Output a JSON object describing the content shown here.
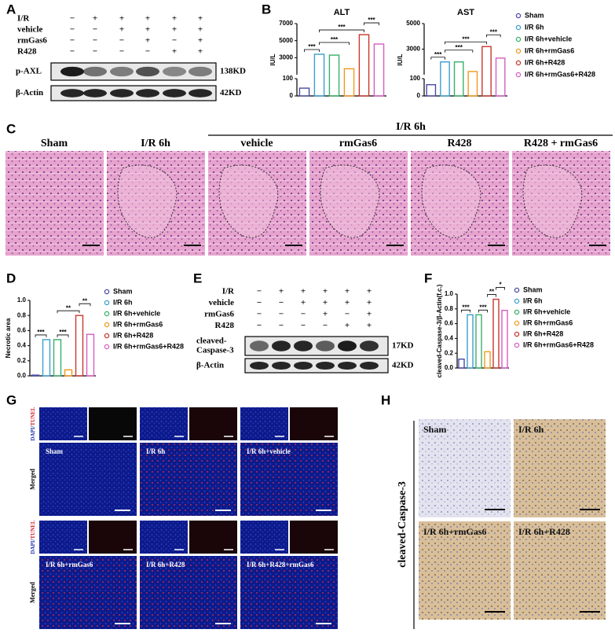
{
  "panel_a": {
    "letter": "A",
    "treatments": [
      {
        "name": "I/R",
        "signs": [
          "−",
          "+",
          "+",
          "+",
          "+",
          "+"
        ]
      },
      {
        "name": "vehicle",
        "signs": [
          "−",
          "−",
          "+",
          "+",
          "+",
          "+"
        ]
      },
      {
        "name": "rmGas6",
        "signs": [
          "−",
          "−",
          "−",
          "+",
          "−",
          "+"
        ]
      },
      {
        "name": "R428",
        "signs": [
          "−",
          "−",
          "−",
          "−",
          "+",
          "+"
        ]
      }
    ],
    "blots": [
      {
        "name": "p-AXL",
        "size": "138KD"
      },
      {
        "name": "β-Actin",
        "size": "42KD"
      }
    ]
  },
  "panel_b": {
    "letter": "B"
  },
  "panel_c": {
    "letter": "C",
    "group_label": "I/R 6h",
    "columns": [
      "Sham",
      "I/R 6h",
      "vehicle",
      "rmGas6",
      "R428",
      "R428 + rmGas6"
    ]
  },
  "panel_d": {
    "letter": "D"
  },
  "panel_e": {
    "letter": "E",
    "treatments": [
      {
        "name": "I/R",
        "signs": [
          "−",
          "+",
          "+",
          "+",
          "+",
          "+"
        ]
      },
      {
        "name": "vehicle",
        "signs": [
          "−",
          "−",
          "+",
          "+",
          "+",
          "+"
        ]
      },
      {
        "name": "rmGas6",
        "signs": [
          "−",
          "−",
          "−",
          "+",
          "−",
          "+"
        ]
      },
      {
        "name": "R428",
        "signs": [
          "−",
          "−",
          "−",
          "−",
          "+",
          "+"
        ]
      }
    ],
    "blots": [
      {
        "name_lines": [
          "cleaved-",
          "Caspase-3"
        ],
        "size": "17KD"
      },
      {
        "name_lines": [
          "β-Actin"
        ],
        "size": "42KD"
      }
    ]
  },
  "panel_f": {
    "letter": "F"
  },
  "panel_g": {
    "letter": "G",
    "rows": [
      {
        "label_parts": [
          "DAPI/",
          "TUNEL"
        ]
      },
      {
        "label": "Merged",
        "captions": [
          "Sham",
          "I/R 6h",
          "I/R 6h+vehicle"
        ]
      },
      {
        "label_parts": [
          "DAPI/",
          "TUNEL"
        ]
      },
      {
        "label": "Merged",
        "captions": [
          "I/R 6h+rmGas6",
          "I/R 6h+R428",
          "I/R 6h+R428+rmGas6"
        ]
      }
    ]
  },
  "panel_h": {
    "letter": "H",
    "side_label": "cleaved-Caspase-3",
    "captions": [
      "Sham",
      "I/R 6h",
      "I/R 6h+rmGas6",
      "I/R 6h+R428"
    ]
  },
  "chart_data": [
    {
      "type": "bar",
      "title": "ALT",
      "y_label": "IU/L",
      "broken_axis": true,
      "ylim_lower": [
        0,
        100
      ],
      "yticks_lower": [
        0,
        100
      ],
      "ylim": [
        1000,
        7000
      ],
      "yticks": [
        3000,
        5000,
        7000
      ],
      "series": [
        {
          "name": "Sham",
          "color": "#4b4ba6",
          "values": [
            45
          ]
        },
        {
          "name": "I/R 6h",
          "color": "#3b9ed0",
          "values": [
            3400
          ]
        },
        {
          "name": "I/R 6h+vehicle",
          "color": "#38b06a",
          "values": [
            3300
          ]
        },
        {
          "name": "I/R 6h+rmGas6",
          "color": "#f09a1e",
          "values": [
            1700
          ]
        },
        {
          "name": "I/R 6h+R428",
          "color": "#c8372d",
          "values": [
            5700
          ]
        },
        {
          "name": "I/R 6h+rmGas6+R428",
          "color": "#d45ec2",
          "values": [
            4600
          ]
        }
      ],
      "annotations": [
        {
          "text": "***",
          "between": [
            0,
            1
          ]
        },
        {
          "text": "***",
          "between": [
            1,
            3
          ]
        },
        {
          "text": "***",
          "between": [
            1,
            4
          ]
        },
        {
          "text": "***",
          "between": [
            4,
            5
          ]
        }
      ]
    },
    {
      "type": "bar",
      "title": "AST",
      "y_label": "IU/L",
      "broken_axis": true,
      "ylim_lower": [
        0,
        100
      ],
      "yticks_lower": [
        0,
        100
      ],
      "ylim": [
        1000,
        5000
      ],
      "yticks": [
        3000,
        5000
      ],
      "series": [
        {
          "color": "#4b4ba6",
          "values": [
            65
          ]
        },
        {
          "color": "#3b9ed0",
          "values": [
            2000
          ]
        },
        {
          "color": "#38b06a",
          "values": [
            2000
          ]
        },
        {
          "color": "#f09a1e",
          "values": [
            1250
          ]
        },
        {
          "color": "#c8372d",
          "values": [
            3200
          ]
        },
        {
          "color": "#d45ec2",
          "values": [
            2300
          ]
        }
      ],
      "annotations": [
        {
          "text": "***",
          "between": [
            0,
            1
          ]
        },
        {
          "text": "***",
          "between": [
            1,
            3
          ]
        },
        {
          "text": "***",
          "between": [
            1,
            4
          ]
        },
        {
          "text": "***",
          "between": [
            4,
            5
          ]
        }
      ]
    },
    {
      "type": "bar",
      "y_label": "Necrotic area",
      "ylim": [
        0,
        1
      ],
      "yticks": [
        {
          "value": 0,
          "label": "0.0"
        },
        0.2,
        0.4,
        0.6,
        0.8,
        {
          "value": 1,
          "label": "1.0"
        }
      ],
      "series": [
        {
          "name": "Sham",
          "color": "#4b4ba6",
          "values": [
            0.01
          ]
        },
        {
          "name": "I/R 6h",
          "color": "#3b9ed0",
          "values": [
            0.48
          ]
        },
        {
          "name": "I/R 6h+vehicle",
          "color": "#38b06a",
          "values": [
            0.48
          ]
        },
        {
          "name": "I/R 6h+rmGas6",
          "color": "#f09a1e",
          "values": [
            0.08
          ]
        },
        {
          "name": "I/R 6h+R428",
          "color": "#c8372d",
          "values": [
            0.8
          ]
        },
        {
          "name": "I/R 6h+rmGas6+R428",
          "color": "#d45ec2",
          "values": [
            0.55
          ]
        }
      ],
      "annotations": [
        {
          "text": "***",
          "between": [
            0,
            1
          ]
        },
        {
          "text": "***",
          "between": [
            2,
            3
          ]
        },
        {
          "text": "**",
          "between": [
            2,
            4
          ]
        },
        {
          "text": "**",
          "between": [
            4,
            5
          ]
        }
      ]
    },
    {
      "type": "bar",
      "y_label": "cleaved-Caspase-3/β-Actin(f.c.)",
      "ylim": [
        0,
        1
      ],
      "yticks": [
        {
          "value": 0,
          "label": "0.0"
        },
        0.2,
        0.4,
        0.6,
        0.8,
        {
          "value": 1,
          "label": "1.0"
        }
      ],
      "series": [
        {
          "name": "Sham",
          "color": "#4b4ba6",
          "values": [
            0.12
          ]
        },
        {
          "name": "I/R 6h",
          "color": "#3b9ed0",
          "values": [
            0.72
          ]
        },
        {
          "name": "I/R 6h+vehicle",
          "color": "#38b06a",
          "values": [
            0.72
          ]
        },
        {
          "name": "I/R 6h+rmGas6",
          "color": "#f09a1e",
          "values": [
            0.22
          ]
        },
        {
          "name": "I/R 6h+R428",
          "color": "#c8372d",
          "values": [
            0.93
          ]
        },
        {
          "name": "I/R 6h+rmGas6+R428",
          "color": "#d45ec2",
          "values": [
            0.78
          ]
        }
      ],
      "annotations": [
        {
          "text": "***",
          "between": [
            0,
            1
          ]
        },
        {
          "text": "***",
          "between": [
            2,
            3
          ]
        },
        {
          "text": "**",
          "between": [
            3,
            4
          ]
        },
        {
          "text": "*",
          "between": [
            4,
            5
          ]
        }
      ]
    }
  ]
}
